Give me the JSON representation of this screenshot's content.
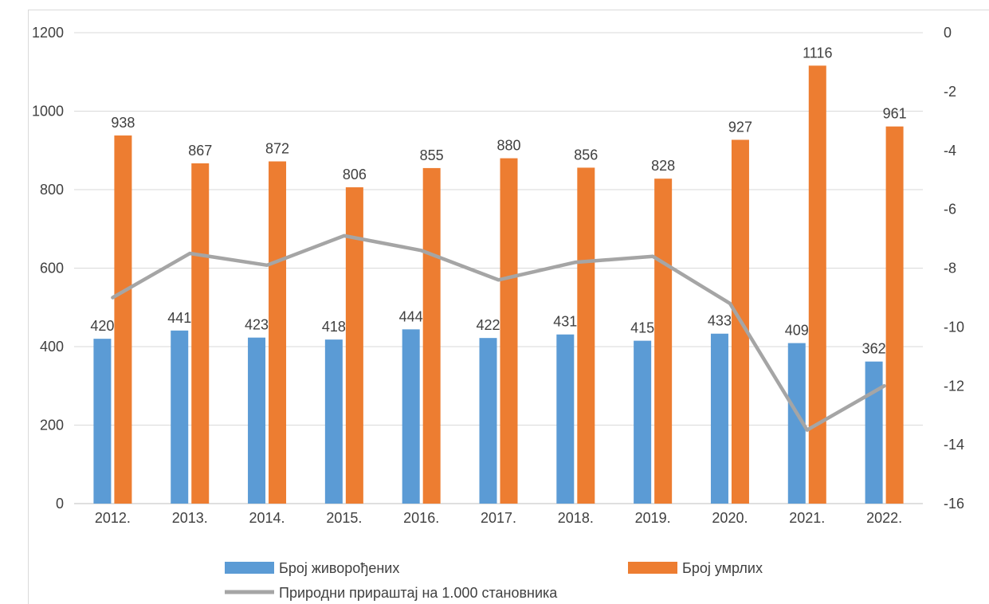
{
  "chart_data": {
    "type": "bar",
    "categories": [
      "2012.",
      "2013.",
      "2014.",
      "2015.",
      "2016.",
      "2017.",
      "2018.",
      "2019.",
      "2020.",
      "2021.",
      "2022."
    ],
    "series": [
      {
        "name": "Број живорођених",
        "type": "bar",
        "axis": "left",
        "color": "#5b9bd5",
        "values": [
          420,
          441,
          423,
          418,
          444,
          422,
          431,
          415,
          433,
          409,
          362
        ]
      },
      {
        "name": "Број умрлих",
        "type": "bar",
        "axis": "left",
        "color": "#ed7d31",
        "values": [
          938,
          867,
          872,
          806,
          855,
          880,
          856,
          828,
          927,
          1116,
          961
        ]
      },
      {
        "name": "Природни прираштај на 1.000 становника",
        "type": "line",
        "axis": "right",
        "color": "#a5a5a5",
        "values": [
          -9.0,
          -7.5,
          -7.9,
          -6.9,
          -7.4,
          -8.4,
          -7.8,
          -7.6,
          -9.2,
          -13.5,
          -12.0
        ]
      }
    ],
    "ylim": [
      0,
      1200
    ],
    "yticks": [
      0,
      200,
      400,
      600,
      800,
      1000,
      1200
    ],
    "y2lim": [
      -16,
      0
    ],
    "y2ticks": [
      0,
      -2,
      -4,
      -6,
      -8,
      -10,
      -12,
      -14,
      -16
    ],
    "grid": true,
    "legend": "bottom"
  }
}
